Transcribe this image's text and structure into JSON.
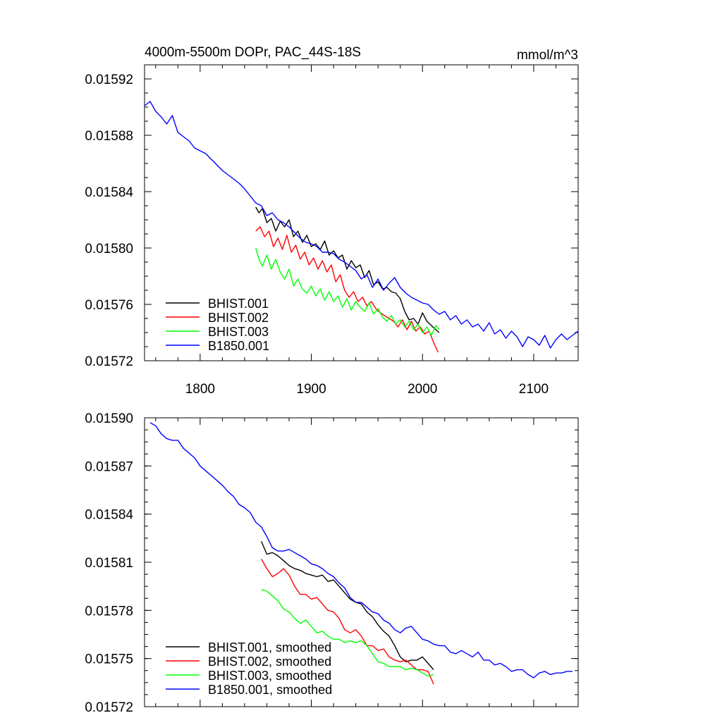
{
  "chart_data": [
    {
      "type": "line",
      "title": "4000m-5500m DOPr, PAC_44S-18S",
      "units_label": "mmol/m^3",
      "xlabel": "",
      "ylabel": "",
      "xlim": [
        1750,
        2140
      ],
      "ylim": [
        0.01572,
        0.01593
      ],
      "x_ticks": [
        "1800",
        "1900",
        "2000",
        "2100"
      ],
      "y_ticks": [
        "0.01572",
        "0.01576",
        "0.01580",
        "0.01584",
        "0.01588",
        "0.01592"
      ],
      "grid": false,
      "legend_position": "bottom-left",
      "series": [
        {
          "name": "BHIST.001",
          "color": "#000000",
          "x": [
            1850,
            1853,
            1856,
            1860,
            1864,
            1868,
            1872,
            1876,
            1880,
            1884,
            1888,
            1892,
            1896,
            1900,
            1904,
            1908,
            1912,
            1916,
            1920,
            1924,
            1928,
            1932,
            1936,
            1940,
            1944,
            1948,
            1952,
            1956,
            1960,
            1964,
            1968,
            1972,
            1976,
            1980,
            1984,
            1988,
            1992,
            1996,
            2000,
            2004,
            2008,
            2012,
            2015
          ],
          "values": [
            0.015829,
            0.015825,
            0.015828,
            0.015818,
            0.015821,
            0.015812,
            0.015819,
            0.015815,
            0.01582,
            0.015808,
            0.015812,
            0.015804,
            0.015809,
            0.015801,
            0.015803,
            0.015799,
            0.015805,
            0.015795,
            0.015798,
            0.015793,
            0.015795,
            0.015785,
            0.015791,
            0.015786,
            0.015788,
            0.015779,
            0.015784,
            0.015774,
            0.015776,
            0.015771,
            0.015772,
            0.015769,
            0.015768,
            0.015764,
            0.015755,
            0.015749,
            0.01575,
            0.015746,
            0.015754,
            0.015748,
            0.015745,
            0.015742,
            0.01574
          ]
        },
        {
          "name": "BHIST.002",
          "color": "#ff0000",
          "x": [
            1850,
            1854,
            1858,
            1862,
            1866,
            1870,
            1874,
            1878,
            1882,
            1886,
            1890,
            1894,
            1898,
            1902,
            1906,
            1910,
            1914,
            1918,
            1922,
            1926,
            1930,
            1934,
            1938,
            1942,
            1946,
            1950,
            1954,
            1958,
            1962,
            1966,
            1970,
            1974,
            1978,
            1982,
            1986,
            1990,
            1994,
            1998,
            2002,
            2006,
            2010,
            2014
          ],
          "values": [
            0.015812,
            0.015815,
            0.015808,
            0.015812,
            0.015801,
            0.015807,
            0.015799,
            0.015809,
            0.015797,
            0.015802,
            0.015792,
            0.015797,
            0.015788,
            0.015793,
            0.015785,
            0.015791,
            0.015783,
            0.015788,
            0.015776,
            0.015781,
            0.01577,
            0.015765,
            0.015769,
            0.015762,
            0.015765,
            0.015759,
            0.015762,
            0.015757,
            0.015754,
            0.015752,
            0.01575,
            0.015748,
            0.015744,
            0.015749,
            0.015742,
            0.015748,
            0.015741,
            0.015744,
            0.015739,
            0.015741,
            0.015733,
            0.015726
          ]
        },
        {
          "name": "BHIST.003",
          "color": "#00ff00",
          "x": [
            1850,
            1853,
            1856,
            1860,
            1864,
            1868,
            1872,
            1876,
            1880,
            1884,
            1888,
            1892,
            1896,
            1900,
            1904,
            1908,
            1912,
            1916,
            1920,
            1924,
            1928,
            1932,
            1936,
            1940,
            1944,
            1948,
            1952,
            1956,
            1960,
            1964,
            1968,
            1972,
            1976,
            1980,
            1984,
            1988,
            1992,
            1996,
            2000,
            2004,
            2008,
            2012,
            2015
          ],
          "values": [
            0.0158,
            0.015792,
            0.015787,
            0.015795,
            0.015785,
            0.015792,
            0.015783,
            0.015778,
            0.015785,
            0.015773,
            0.015778,
            0.015771,
            0.015768,
            0.015773,
            0.015766,
            0.015771,
            0.015763,
            0.015769,
            0.015762,
            0.015766,
            0.015758,
            0.015764,
            0.015756,
            0.015762,
            0.015758,
            0.015755,
            0.015761,
            0.015753,
            0.015757,
            0.015751,
            0.015748,
            0.015752,
            0.015746,
            0.015749,
            0.015744,
            0.015748,
            0.015742,
            0.015746,
            0.01574,
            0.015744,
            0.015738,
            0.015745,
            0.015742
          ]
        },
        {
          "name": "B1850.001",
          "color": "#0000ff",
          "x": [
            1750,
            1755,
            1760,
            1765,
            1770,
            1775,
            1780,
            1785,
            1790,
            1795,
            1800,
            1805,
            1810,
            1815,
            1820,
            1825,
            1830,
            1835,
            1840,
            1845,
            1850,
            1855,
            1860,
            1865,
            1870,
            1875,
            1880,
            1885,
            1890,
            1895,
            1900,
            1905,
            1910,
            1915,
            1920,
            1925,
            1930,
            1935,
            1940,
            1945,
            1950,
            1955,
            1960,
            1965,
            1970,
            1975,
            1980,
            1985,
            1990,
            1995,
            2000,
            2005,
            2010,
            2015,
            2020,
            2025,
            2030,
            2035,
            2040,
            2045,
            2050,
            2055,
            2060,
            2065,
            2070,
            2075,
            2080,
            2085,
            2090,
            2095,
            2100,
            2105,
            2110,
            2115,
            2120,
            2125,
            2130,
            2135,
            2140
          ],
          "values": [
            0.015901,
            0.015904,
            0.015897,
            0.015893,
            0.015888,
            0.015894,
            0.015882,
            0.015879,
            0.015876,
            0.015871,
            0.015869,
            0.015867,
            0.015863,
            0.015859,
            0.015855,
            0.015852,
            0.015849,
            0.015846,
            0.015842,
            0.015837,
            0.015832,
            0.01583,
            0.015823,
            0.015825,
            0.01582,
            0.015818,
            0.015815,
            0.015811,
            0.015807,
            0.015804,
            0.015803,
            0.015801,
            0.015797,
            0.015797,
            0.015796,
            0.015792,
            0.01579,
            0.015787,
            0.015784,
            0.015778,
            0.015781,
            0.015772,
            0.015778,
            0.01577,
            0.015775,
            0.015779,
            0.015772,
            0.015768,
            0.015765,
            0.015763,
            0.015761,
            0.01576,
            0.015756,
            0.015753,
            0.015755,
            0.015749,
            0.015752,
            0.015746,
            0.015749,
            0.015744,
            0.015746,
            0.015741,
            0.015747,
            0.015739,
            0.015742,
            0.015736,
            0.015741,
            0.015737,
            0.01573,
            0.015737,
            0.015735,
            0.015731,
            0.015738,
            0.015729,
            0.015735,
            0.015739,
            0.015735,
            0.015738,
            0.015741
          ]
        }
      ]
    },
    {
      "type": "line",
      "title": "",
      "xlabel": "",
      "ylabel": "",
      "xlim": [
        1750,
        2140
      ],
      "ylim": [
        0.01572,
        0.0159
      ],
      "x_ticks": [],
      "y_ticks": [
        "0.01572",
        "0.01575",
        "0.01578",
        "0.01581",
        "0.01584",
        "0.01587",
        "0.01590"
      ],
      "grid": false,
      "legend_position": "bottom-left",
      "series": [
        {
          "name": "BHIST.001, smoothed",
          "color": "#000000",
          "x": [
            1855,
            1860,
            1865,
            1870,
            1875,
            1880,
            1885,
            1890,
            1895,
            1900,
            1905,
            1910,
            1915,
            1920,
            1925,
            1930,
            1935,
            1940,
            1945,
            1950,
            1955,
            1960,
            1965,
            1970,
            1975,
            1980,
            1985,
            1990,
            1995,
            2000,
            2005,
            2010
          ],
          "values": [
            0.015823,
            0.015815,
            0.015816,
            0.015814,
            0.015811,
            0.015808,
            0.015806,
            0.015805,
            0.015803,
            0.015802,
            0.015801,
            0.015802,
            0.015798,
            0.015799,
            0.015795,
            0.015791,
            0.015787,
            0.015785,
            0.015784,
            0.015779,
            0.015776,
            0.015771,
            0.015767,
            0.015764,
            0.015758,
            0.015751,
            0.015748,
            0.015749,
            0.015749,
            0.015751,
            0.015747,
            0.015743
          ]
        },
        {
          "name": "BHIST.002, smoothed",
          "color": "#ff0000",
          "x": [
            1855,
            1860,
            1865,
            1870,
            1875,
            1880,
            1885,
            1890,
            1895,
            1900,
            1905,
            1910,
            1915,
            1920,
            1925,
            1930,
            1935,
            1940,
            1945,
            1950,
            1955,
            1960,
            1965,
            1970,
            1975,
            1980,
            1985,
            1990,
            1995,
            2000,
            2005,
            2010
          ],
          "values": [
            0.015812,
            0.015806,
            0.015801,
            0.015803,
            0.015806,
            0.015802,
            0.015795,
            0.01579,
            0.01579,
            0.015787,
            0.015788,
            0.015784,
            0.01578,
            0.015779,
            0.015775,
            0.015768,
            0.015766,
            0.015768,
            0.015764,
            0.015758,
            0.015758,
            0.015755,
            0.015756,
            0.015751,
            0.015749,
            0.015748,
            0.015749,
            0.015746,
            0.015743,
            0.015743,
            0.015742,
            0.015734
          ]
        },
        {
          "name": "BHIST.003, smoothed",
          "color": "#00ff00",
          "x": [
            1855,
            1860,
            1865,
            1870,
            1875,
            1880,
            1885,
            1890,
            1895,
            1900,
            1905,
            1910,
            1915,
            1920,
            1925,
            1930,
            1935,
            1940,
            1945,
            1950,
            1955,
            1960,
            1965,
            1970,
            1975,
            1980,
            1985,
            1990,
            1995,
            2000,
            2005,
            2010
          ],
          "values": [
            0.015793,
            0.015792,
            0.015789,
            0.015786,
            0.015781,
            0.015779,
            0.015775,
            0.015772,
            0.015774,
            0.01577,
            0.015766,
            0.015767,
            0.015764,
            0.015762,
            0.015762,
            0.01576,
            0.015761,
            0.01576,
            0.015761,
            0.015758,
            0.015753,
            0.015748,
            0.015747,
            0.015745,
            0.015745,
            0.015745,
            0.015743,
            0.015744,
            0.015743,
            0.015741,
            0.015739,
            0.01574
          ]
        },
        {
          "name": "B1850.001, smoothed",
          "color": "#0000ff",
          "x": [
            1755,
            1760,
            1765,
            1770,
            1775,
            1780,
            1785,
            1790,
            1795,
            1800,
            1805,
            1810,
            1815,
            1820,
            1825,
            1830,
            1835,
            1840,
            1845,
            1850,
            1855,
            1860,
            1865,
            1870,
            1875,
            1880,
            1885,
            1890,
            1895,
            1900,
            1905,
            1910,
            1915,
            1920,
            1925,
            1930,
            1935,
            1940,
            1945,
            1950,
            1955,
            1960,
            1965,
            1970,
            1975,
            1980,
            1985,
            1990,
            1995,
            2000,
            2005,
            2010,
            2015,
            2020,
            2025,
            2030,
            2035,
            2040,
            2045,
            2050,
            2055,
            2060,
            2065,
            2070,
            2075,
            2080,
            2085,
            2090,
            2095,
            2100,
            2105,
            2110,
            2115,
            2120,
            2125,
            2130,
            2135
          ],
          "values": [
            0.015897,
            0.015895,
            0.01589,
            0.015887,
            0.015886,
            0.015886,
            0.015881,
            0.015878,
            0.015875,
            0.01587,
            0.015867,
            0.015864,
            0.015861,
            0.015858,
            0.015854,
            0.015851,
            0.015846,
            0.015844,
            0.015841,
            0.015835,
            0.015832,
            0.015826,
            0.015819,
            0.015817,
            0.015817,
            0.015818,
            0.015816,
            0.015814,
            0.015812,
            0.015809,
            0.015808,
            0.015806,
            0.015803,
            0.015801,
            0.015797,
            0.015794,
            0.015788,
            0.015785,
            0.015785,
            0.015782,
            0.015779,
            0.015778,
            0.015774,
            0.015772,
            0.015768,
            0.015766,
            0.015769,
            0.01577,
            0.015766,
            0.015762,
            0.015761,
            0.015759,
            0.015758,
            0.015758,
            0.015754,
            0.015753,
            0.015755,
            0.015753,
            0.015751,
            0.015754,
            0.015749,
            0.015749,
            0.015746,
            0.015747,
            0.015745,
            0.015742,
            0.015743,
            0.015743,
            0.01574,
            0.015738,
            0.015741,
            0.015742,
            0.01574,
            0.015741,
            0.015741,
            0.015742,
            0.015742
          ]
        }
      ]
    }
  ]
}
